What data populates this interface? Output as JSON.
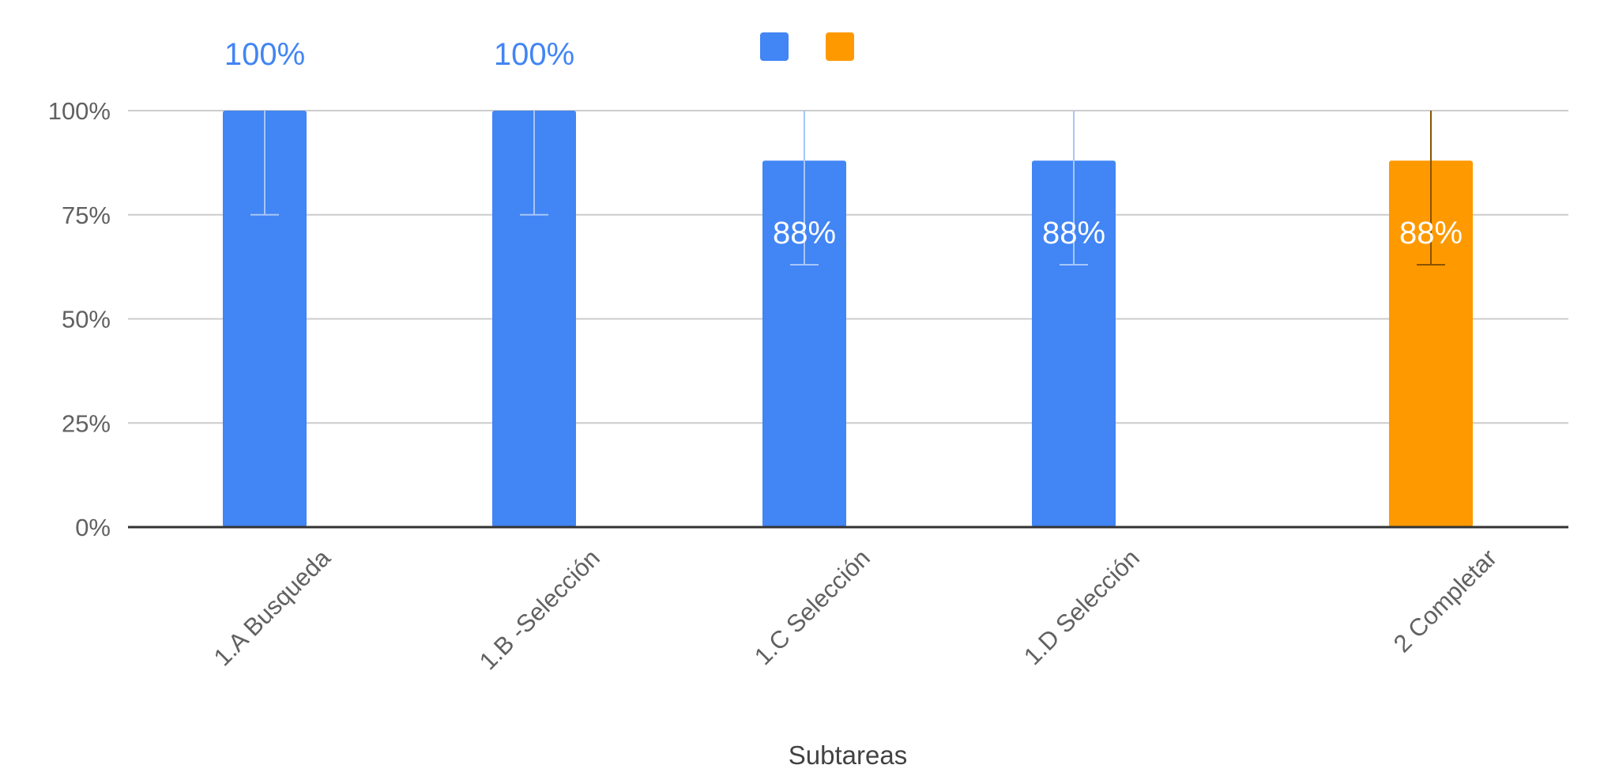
{
  "chart_data": {
    "type": "bar",
    "title": "",
    "xlabel": "Subtareas",
    "ylabel": "",
    "ylim": [
      0,
      100
    ],
    "yticks": [
      0,
      25,
      50,
      75,
      100
    ],
    "ytick_labels": [
      "0%",
      "25%",
      "50%",
      "75%",
      "100%"
    ],
    "grid": true,
    "legend_position": "top-center",
    "legend": [
      {
        "color": "#4285f4",
        "label": ""
      },
      {
        "color": "#ff9900",
        "label": ""
      }
    ],
    "categories": [
      "1.A Busqueda",
      "1.B -Selección",
      "1.C Selección",
      "1.D Selección",
      "2 Completar"
    ],
    "series": [
      {
        "color": "#4285f4",
        "values": [
          100,
          100,
          88,
          88,
          null
        ],
        "labels": [
          "100%",
          "100%",
          "88%",
          "88%",
          ""
        ],
        "error_low": [
          75,
          75,
          63,
          63,
          null
        ],
        "error_high": [
          100,
          100,
          100,
          100,
          null
        ]
      },
      {
        "color": "#ff9900",
        "values": [
          null,
          null,
          null,
          null,
          88
        ],
        "labels": [
          "",
          "",
          "",
          "",
          "88%"
        ],
        "error_low": [
          null,
          null,
          null,
          null,
          63
        ],
        "error_high": [
          null,
          null,
          null,
          null,
          100
        ]
      }
    ]
  }
}
